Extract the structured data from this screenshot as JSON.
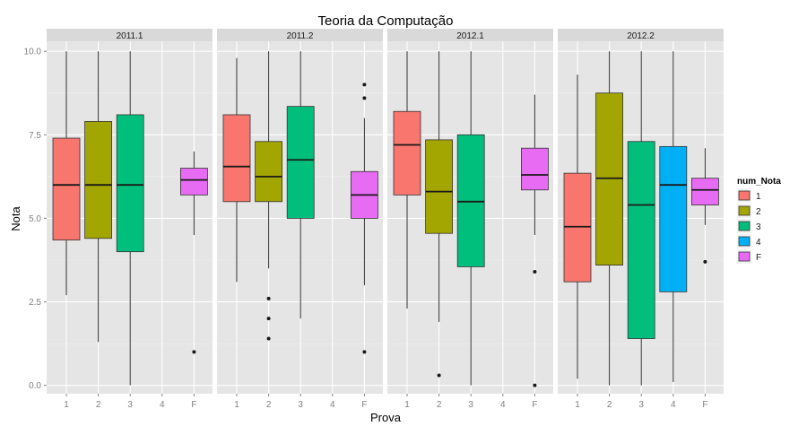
{
  "chart_data": {
    "type": "boxplot",
    "title": "Teoria da Computação",
    "xlabel": "Prova",
    "ylabel": "Nota",
    "ylim": [
      -0.25,
      10.3
    ],
    "yticks": [
      0.0,
      2.5,
      5.0,
      7.5,
      10.0
    ],
    "ytick_labels": [
      "0.0",
      "2.5",
      "5.0",
      "7.5",
      "10.0"
    ],
    "categories": [
      "1",
      "2",
      "3",
      "4",
      "F"
    ],
    "legend": {
      "title": "num_Nota",
      "position": "right",
      "entries": [
        {
          "label": "1",
          "color": "#F8766D"
        },
        {
          "label": "2",
          "color": "#A3A500"
        },
        {
          "label": "3",
          "color": "#00BF7D"
        },
        {
          "label": "4",
          "color": "#00B0F6"
        },
        {
          "label": "F",
          "color": "#E76BF3"
        }
      ]
    },
    "grid": true,
    "panels": [
      {
        "label": "2011.1",
        "boxes": [
          {
            "cat": "1",
            "min": 2.7,
            "q1": 4.35,
            "median": 6.0,
            "q3": 7.4,
            "max": 10.0,
            "outliers": []
          },
          {
            "cat": "2",
            "min": 1.3,
            "q1": 4.4,
            "median": 6.0,
            "q3": 7.9,
            "max": 10.0,
            "outliers": []
          },
          {
            "cat": "3",
            "min": 0.0,
            "q1": 4.0,
            "median": 6.0,
            "q3": 8.1,
            "max": 10.0,
            "outliers": []
          },
          {
            "cat": "F",
            "min": 4.5,
            "q1": 5.7,
            "median": 6.15,
            "q3": 6.5,
            "max": 7.0,
            "outliers": [
              1.0
            ]
          }
        ]
      },
      {
        "label": "2011.2",
        "boxes": [
          {
            "cat": "1",
            "min": 3.1,
            "q1": 5.5,
            "median": 6.55,
            "q3": 8.1,
            "max": 9.8,
            "outliers": []
          },
          {
            "cat": "2",
            "min": 3.5,
            "q1": 5.5,
            "median": 6.25,
            "q3": 7.3,
            "max": 10.0,
            "outliers": [
              2.6,
              2.0,
              1.4
            ]
          },
          {
            "cat": "3",
            "min": 2.0,
            "q1": 5.0,
            "median": 6.75,
            "q3": 8.35,
            "max": 10.0,
            "outliers": []
          },
          {
            "cat": "F",
            "min": 3.0,
            "q1": 5.0,
            "median": 5.7,
            "q3": 6.4,
            "max": 8.0,
            "outliers": [
              9.0,
              8.6,
              1.0
            ]
          }
        ]
      },
      {
        "label": "2012.1",
        "boxes": [
          {
            "cat": "1",
            "min": 2.3,
            "q1": 5.7,
            "median": 7.2,
            "q3": 8.2,
            "max": 10.0,
            "outliers": []
          },
          {
            "cat": "2",
            "min": 1.9,
            "q1": 4.55,
            "median": 5.8,
            "q3": 7.35,
            "max": 10.0,
            "outliers": [
              0.3
            ]
          },
          {
            "cat": "3",
            "min": 0.0,
            "q1": 3.55,
            "median": 5.5,
            "q3": 7.5,
            "max": 10.0,
            "outliers": []
          },
          {
            "cat": "F",
            "min": 4.5,
            "q1": 5.85,
            "median": 6.3,
            "q3": 7.1,
            "max": 8.7,
            "outliers": [
              3.4,
              0.0
            ]
          }
        ]
      },
      {
        "label": "2012.2",
        "boxes": [
          {
            "cat": "1",
            "min": 0.2,
            "q1": 3.1,
            "median": 4.75,
            "q3": 6.35,
            "max": 9.3,
            "outliers": []
          },
          {
            "cat": "2",
            "min": 0.0,
            "q1": 3.6,
            "median": 6.2,
            "q3": 8.75,
            "max": 10.0,
            "outliers": []
          },
          {
            "cat": "3",
            "min": 0.0,
            "q1": 1.4,
            "median": 5.4,
            "q3": 7.3,
            "max": 10.0,
            "outliers": []
          },
          {
            "cat": "4",
            "min": 0.1,
            "q1": 2.8,
            "median": 6.0,
            "q3": 7.15,
            "max": 10.0,
            "outliers": []
          },
          {
            "cat": "F",
            "min": 4.8,
            "q1": 5.4,
            "median": 5.85,
            "q3": 6.2,
            "max": 7.1,
            "outliers": [
              3.7
            ]
          }
        ]
      }
    ]
  }
}
